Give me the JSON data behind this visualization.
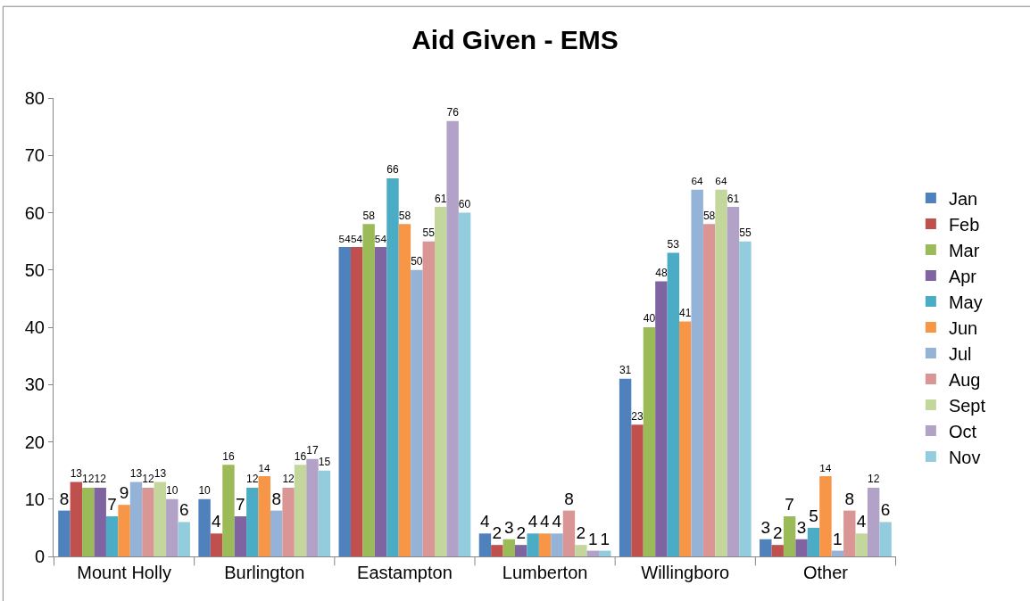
{
  "chart_data": {
    "type": "bar",
    "title": "Aid Given - EMS",
    "categories": [
      "Mount Holly",
      "Burlington",
      "Eastampton",
      "Lumberton",
      "Willingboro",
      "Other"
    ],
    "series": [
      {
        "name": "Jan",
        "color": "#4f81bd",
        "values": [
          8,
          10,
          54,
          4,
          31,
          3
        ]
      },
      {
        "name": "Feb",
        "color": "#c0504d",
        "values": [
          13,
          4,
          54,
          2,
          23,
          2
        ]
      },
      {
        "name": "Mar",
        "color": "#9bbb59",
        "values": [
          12,
          16,
          58,
          3,
          40,
          7
        ]
      },
      {
        "name": "Apr",
        "color": "#8064a2",
        "values": [
          12,
          7,
          54,
          2,
          48,
          3
        ]
      },
      {
        "name": "May",
        "color": "#4bacc6",
        "values": [
          7,
          12,
          66,
          4,
          53,
          5
        ]
      },
      {
        "name": "Jun",
        "color": "#f79646",
        "values": [
          9,
          14,
          58,
          4,
          41,
          14
        ]
      },
      {
        "name": "Jul",
        "color": "#95b3d7",
        "values": [
          13,
          8,
          50,
          4,
          64,
          1
        ]
      },
      {
        "name": "Aug",
        "color": "#da9694",
        "values": [
          12,
          12,
          55,
          8,
          58,
          8
        ]
      },
      {
        "name": "Sept",
        "color": "#c3d69b",
        "values": [
          13,
          16,
          61,
          2,
          64,
          4
        ]
      },
      {
        "name": "Oct",
        "color": "#b3a2c7",
        "values": [
          10,
          17,
          76,
          1,
          61,
          12
        ]
      },
      {
        "name": "Nov",
        "color": "#93cddd",
        "values": [
          6,
          15,
          60,
          1,
          55,
          6
        ]
      }
    ],
    "ylim": [
      0,
      80
    ],
    "yticks": [
      0,
      10,
      20,
      30,
      40,
      50,
      60,
      70,
      80
    ],
    "grid": false,
    "legend": "right",
    "data_labels": true
  }
}
